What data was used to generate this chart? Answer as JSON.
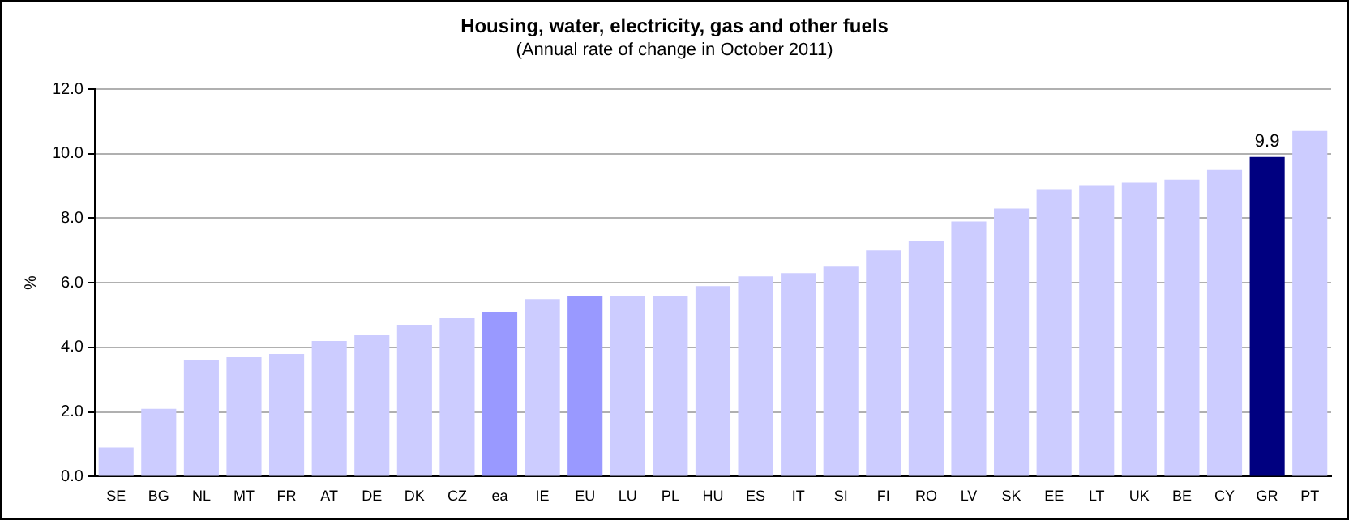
{
  "chart_data": {
    "type": "bar",
    "title": "Housing, water, electricity, gas and other fuels",
    "subtitle": "(Annual rate of change in October 2011)",
    "ylabel": "%",
    "categories": [
      "SE",
      "BG",
      "NL",
      "MT",
      "FR",
      "AT",
      "DE",
      "DK",
      "CZ",
      "ea",
      "IE",
      "EU",
      "LU",
      "PL",
      "HU",
      "ES",
      "IT",
      "SI",
      "FI",
      "RO",
      "LV",
      "SK",
      "EE",
      "LT",
      "UK",
      "BE",
      "CY",
      "GR",
      "PT"
    ],
    "values": [
      0.9,
      2.1,
      3.6,
      3.7,
      3.8,
      4.2,
      4.4,
      4.7,
      4.9,
      5.1,
      5.5,
      5.6,
      5.6,
      5.6,
      5.9,
      6.2,
      6.3,
      6.5,
      7.0,
      7.3,
      7.9,
      8.3,
      8.9,
      9.0,
      9.1,
      9.2,
      9.5,
      9.9,
      10.7
    ],
    "colors": [
      "#ccccff",
      "#ccccff",
      "#ccccff",
      "#ccccff",
      "#ccccff",
      "#ccccff",
      "#ccccff",
      "#ccccff",
      "#ccccff",
      "#9999ff",
      "#ccccff",
      "#9999ff",
      "#ccccff",
      "#ccccff",
      "#ccccff",
      "#ccccff",
      "#ccccff",
      "#ccccff",
      "#ccccff",
      "#ccccff",
      "#ccccff",
      "#ccccff",
      "#ccccff",
      "#ccccff",
      "#ccccff",
      "#ccccff",
      "#ccccff",
      "#000080",
      "#ccccff"
    ],
    "value_labels": [
      null,
      null,
      null,
      null,
      null,
      null,
      null,
      null,
      null,
      null,
      null,
      null,
      null,
      null,
      null,
      null,
      null,
      null,
      null,
      null,
      null,
      null,
      null,
      null,
      null,
      null,
      null,
      "9.9",
      null
    ],
    "ylim": [
      0,
      12
    ],
    "yticks": [
      {
        "value": 0,
        "label": "0.0"
      },
      {
        "value": 2,
        "label": "2.0"
      },
      {
        "value": 4,
        "label": "4.0"
      },
      {
        "value": 6,
        "label": "6.0"
      },
      {
        "value": 8,
        "label": "8.0"
      },
      {
        "value": 10,
        "label": "10.0"
      },
      {
        "value": 12,
        "label": "12.0"
      }
    ],
    "grid": "y",
    "legend": false
  }
}
